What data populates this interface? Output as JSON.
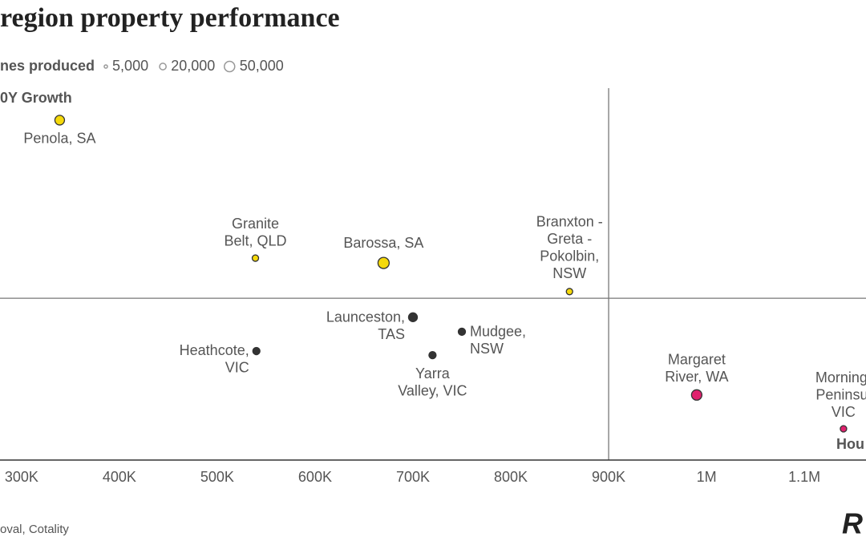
{
  "chart_data": {
    "type": "scatter",
    "title": "region property performance",
    "size_legend": {
      "title": "nes produced",
      "sizes": [
        {
          "value": 5000,
          "label": "5,000"
        },
        {
          "value": 20000,
          "label": "20,000"
        },
        {
          "value": 50000,
          "label": "50,000"
        }
      ]
    },
    "y_label": "0Y Growth",
    "x_label": "Hou",
    "source": "oval, Cotality",
    "logo": "R",
    "xlim": [
      278000,
      1163000
    ],
    "ylim": [
      0,
      100
    ],
    "xticks": [
      {
        "value": 300000,
        "label": "300K"
      },
      {
        "value": 400000,
        "label": "400K"
      },
      {
        "value": 500000,
        "label": "500K"
      },
      {
        "value": 600000,
        "label": "600K"
      },
      {
        "value": 700000,
        "label": "700K"
      },
      {
        "value": 800000,
        "label": "800K"
      },
      {
        "value": 900000,
        "label": "900K"
      },
      {
        "value": 1000000,
        "label": "1M"
      },
      {
        "value": 1100000,
        "label": "1.1M"
      }
    ],
    "reference_lines": {
      "x": 900000,
      "y": 43.5
    },
    "points": [
      {
        "label": [
          "Penola, SA"
        ],
        "x": 339000,
        "y": 91.4,
        "size": 43000,
        "color": "#f5d90a"
      },
      {
        "label": [
          "Granite",
          "Belt, QLD"
        ],
        "x": 539000,
        "y": 54.3,
        "size": 19000,
        "color": "#f5d90a"
      },
      {
        "label": [
          "Barossa, SA"
        ],
        "x": 670000,
        "y": 53.0,
        "size": 58000,
        "color": "#f5d90a"
      },
      {
        "label": [
          "Branxton -",
          "Greta -",
          "Pokolbin,",
          "NSW"
        ],
        "x": 860000,
        "y": 45.3,
        "size": 19000,
        "color": "#f5d90a"
      },
      {
        "label": [
          "Launceston,",
          "TAS"
        ],
        "x": 700000,
        "y": 38.4,
        "size": 36000,
        "color": "#333333"
      },
      {
        "label": [
          "Mudgee,",
          "NSW"
        ],
        "x": 750000,
        "y": 34.5,
        "size": 24000,
        "color": "#333333"
      },
      {
        "label": [
          "Heathcote,",
          "VIC"
        ],
        "x": 540000,
        "y": 29.3,
        "size": 24000,
        "color": "#333333"
      },
      {
        "label": [
          "Yarra",
          "Valley, VIC"
        ],
        "x": 720000,
        "y": 28.2,
        "size": 24000,
        "color": "#333333"
      },
      {
        "label": [
          "Margaret",
          "River, WA"
        ],
        "x": 990000,
        "y": 17.5,
        "size": 50000,
        "color": "#e0226e"
      },
      {
        "label": [
          "Morningt",
          "Peninsul",
          "VIC"
        ],
        "x": 1140000,
        "y": 8.4,
        "size": 19000,
        "color": "#e0226e"
      }
    ]
  }
}
